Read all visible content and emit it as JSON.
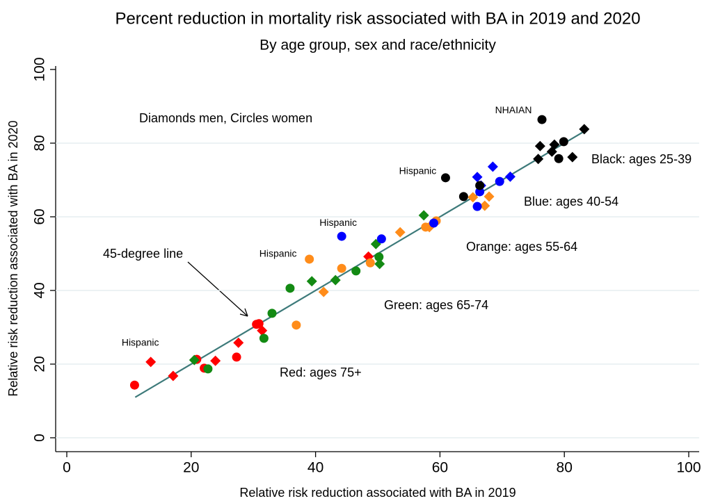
{
  "chart_data": {
    "type": "scatter",
    "title": "Percent reduction in mortality risk associated with BA in 2019 and 2020",
    "subtitle": "By age group, sex and race/ethnicity",
    "x_label": "Relative risk reduction associated with BA in 2019",
    "y_label": "Relative risk reduction associated with BA in 2020",
    "note": "Diamonds men, Circles women",
    "xlim": [
      0,
      100
    ],
    "ylim": [
      0,
      100
    ],
    "xticks": [
      0,
      20,
      40,
      60,
      80,
      100
    ],
    "yticks": [
      0,
      20,
      40,
      60,
      80,
      100
    ],
    "grid": true,
    "reference_line": {
      "label": "45-degree line",
      "color": "#3d7a7a",
      "x": [
        11,
        83.5
      ],
      "values": [
        11,
        83.5
      ]
    },
    "series": [
      {
        "name": "Red: ages 75+",
        "color": "#ff0000",
        "x": [
          10.9,
          20.9,
          22.1,
          27.3,
          30.5,
          30.9,
          13.5,
          17.1,
          23.9,
          27.6,
          31.4,
          48.5
        ],
        "values": [
          14.3,
          21.3,
          18.9,
          21.9,
          30.8,
          31.0,
          20.6,
          16.8,
          20.9,
          25.8,
          29.1,
          49.2
        ],
        "shapes": [
          "circle",
          "circle",
          "circle",
          "circle",
          "circle",
          "circle",
          "diamond",
          "diamond",
          "diamond",
          "diamond",
          "diamond",
          "diamond"
        ],
        "point_labels": [
          null,
          null,
          null,
          null,
          null,
          null,
          "Hispanic",
          null,
          null,
          null,
          null,
          null
        ]
      },
      {
        "name": "Green: ages 65-74",
        "color": "#138a13",
        "x": [
          22.7,
          31.7,
          33.0,
          35.9,
          46.5,
          50.2,
          20.5,
          39.4,
          43.2,
          49.7,
          50.3,
          57.4
        ],
        "values": [
          18.7,
          27.0,
          33.8,
          40.6,
          45.3,
          49.1,
          21.1,
          42.5,
          42.8,
          52.6,
          47.2,
          60.4
        ],
        "shapes": [
          "circle",
          "circle",
          "circle",
          "circle",
          "circle",
          "circle",
          "diamond",
          "diamond",
          "diamond",
          "diamond",
          "diamond",
          "diamond"
        ],
        "point_labels": [
          null,
          null,
          null,
          null,
          null,
          null,
          null,
          null,
          null,
          null,
          null,
          null
        ]
      },
      {
        "name": "Orange: ages 55-64",
        "color": "#ff8c1a",
        "x": [
          39.0,
          44.2,
          36.9,
          48.8,
          57.7,
          59.4,
          41.3,
          53.6,
          58.3,
          67.2,
          67.9,
          65.3
        ],
        "values": [
          48.5,
          46.0,
          30.6,
          47.5,
          57.2,
          58.9,
          39.6,
          55.8,
          57.2,
          63.0,
          65.5,
          65.3
        ],
        "shapes": [
          "circle",
          "circle",
          "circle",
          "circle",
          "circle",
          "circle",
          "diamond",
          "diamond",
          "diamond",
          "diamond",
          "diamond",
          "diamond"
        ],
        "point_labels": [
          "Hispanic",
          null,
          null,
          null,
          null,
          null,
          null,
          null,
          null,
          null,
          null,
          null
        ]
      },
      {
        "name": "Blue: ages 40-54",
        "color": "#0000ff",
        "x": [
          44.2,
          50.6,
          59.0,
          66.0,
          66.4,
          69.6,
          66.0,
          68.5,
          71.3,
          66.6
        ],
        "values": [
          54.7,
          54.0,
          58.3,
          62.8,
          66.8,
          69.6,
          70.8,
          73.6,
          70.9,
          68.5
        ],
        "shapes": [
          "circle",
          "circle",
          "circle",
          "circle",
          "circle",
          "circle",
          "diamond",
          "diamond",
          "diamond",
          "diamond"
        ],
        "point_labels": [
          "Hispanic",
          null,
          null,
          null,
          null,
          null,
          null,
          null,
          null,
          null
        ]
      },
      {
        "name": "Black: ages 25-39",
        "color": "#000000",
        "x": [
          60.9,
          63.8,
          66.4,
          76.4,
          79.1,
          79.9,
          76.1,
          75.8,
          78.0,
          78.4,
          81.3,
          83.2
        ],
        "values": [
          70.6,
          65.5,
          68.5,
          86.4,
          75.8,
          80.4,
          79.2,
          75.7,
          77.7,
          79.6,
          76.2,
          83.8
        ],
        "shapes": [
          "circle",
          "circle",
          "circle",
          "circle",
          "circle",
          "circle",
          "diamond",
          "diamond",
          "diamond",
          "diamond",
          "diamond",
          "diamond"
        ],
        "point_labels": [
          "Hispanic",
          null,
          null,
          "NHAIAN",
          null,
          null,
          null,
          null,
          null,
          null,
          null,
          null
        ]
      }
    ]
  }
}
